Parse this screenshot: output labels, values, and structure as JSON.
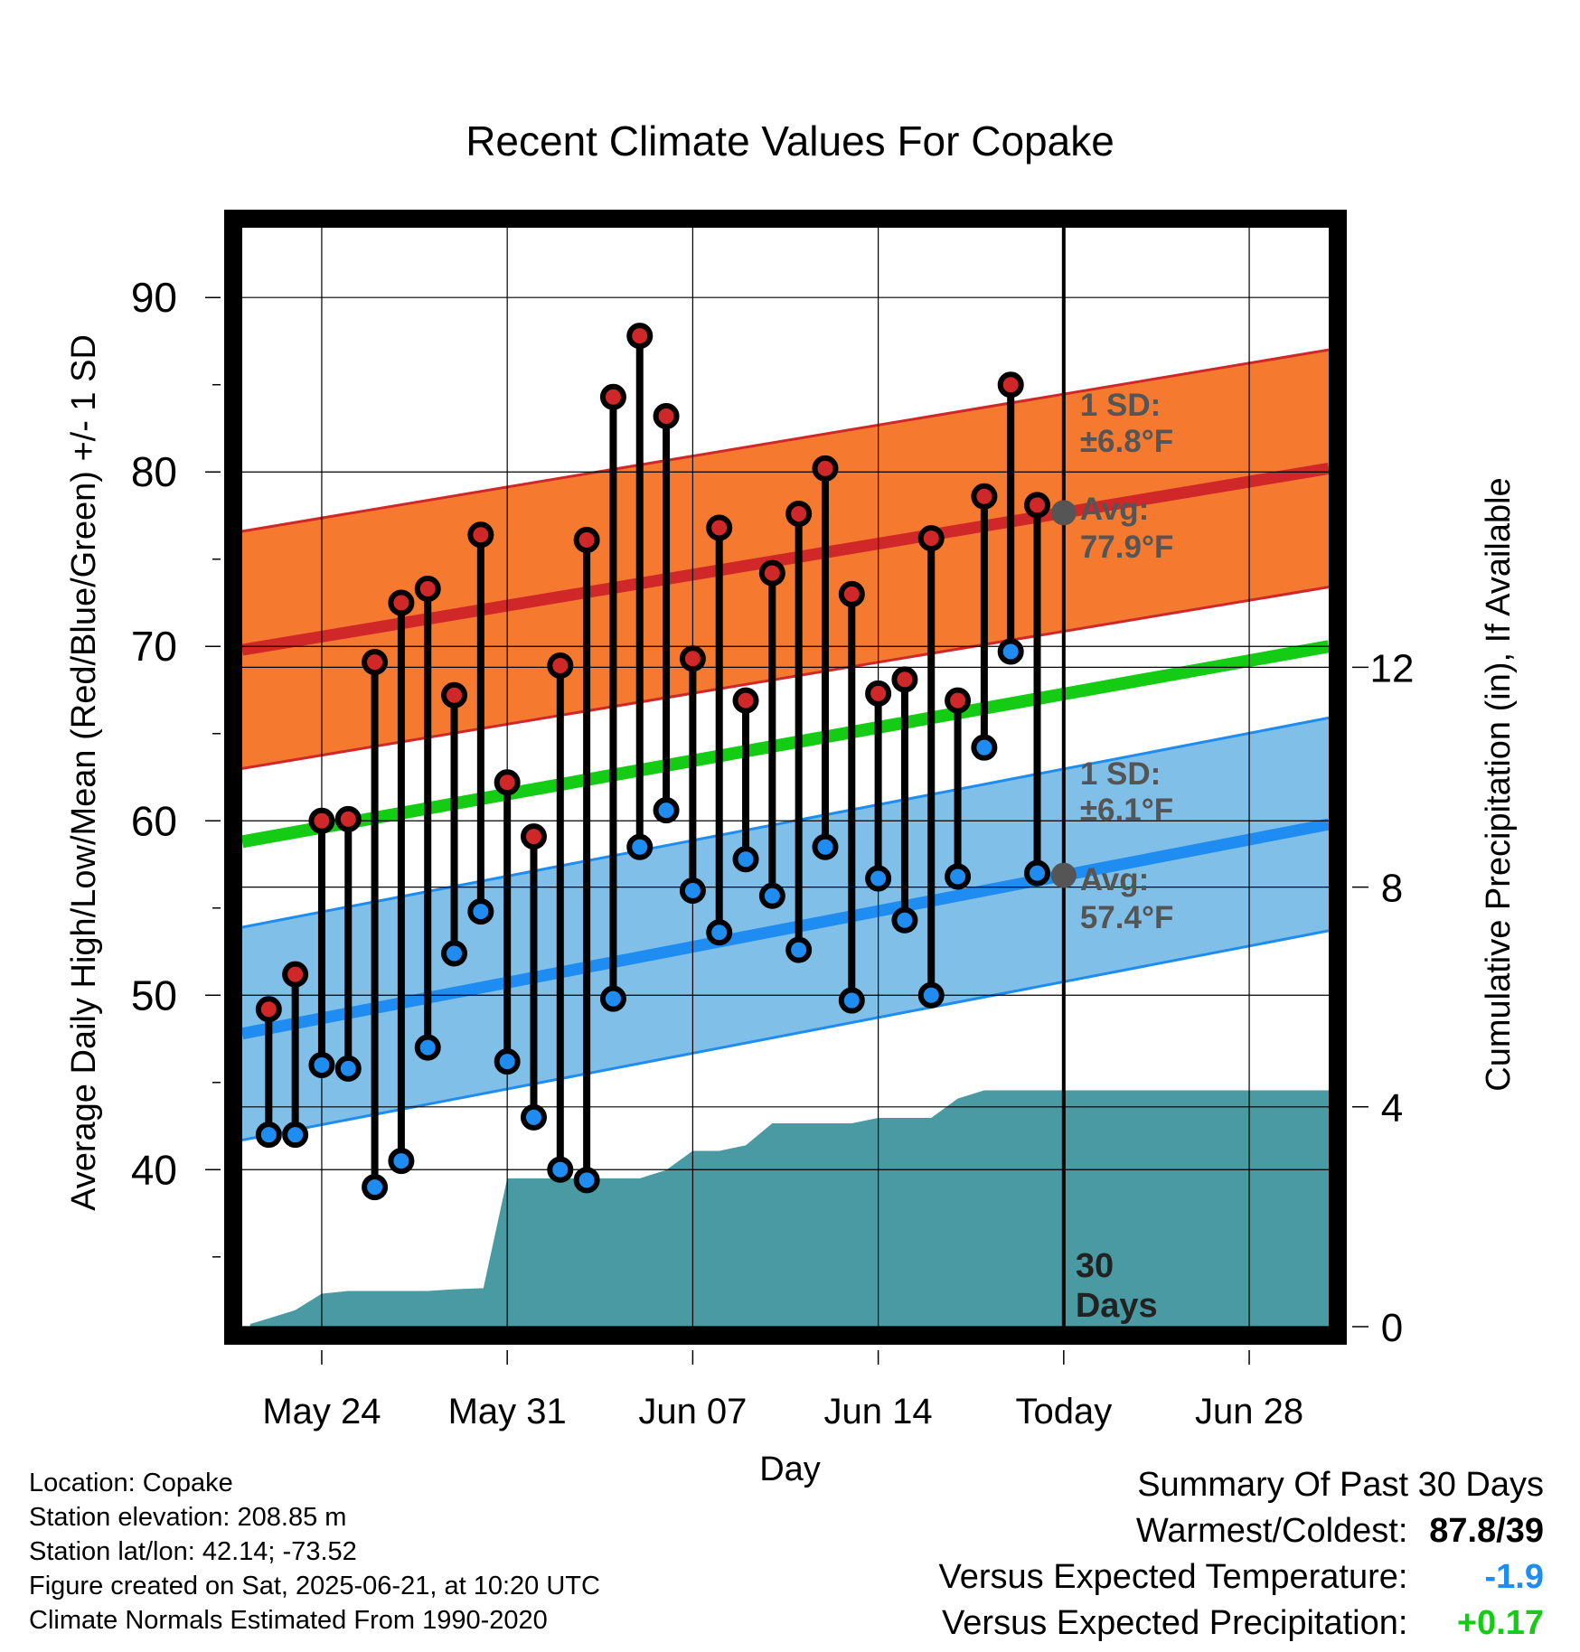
{
  "chart_data": {
    "type": "line",
    "title": "Recent Climate Values For Copake",
    "xlabel": "Day",
    "ylabel": "Average Daily High/Low/Mean (Red/Blue/Green) +/- 1 SD",
    "y2label": "Cumulative Precipitation (in), If Available",
    "ylim": [
      31,
      94
    ],
    "y2lim": [
      0,
      20
    ],
    "y_ticks": [
      "40",
      "50",
      "60",
      "70",
      "80",
      "90"
    ],
    "y2_ticks": [
      "0",
      "4",
      "8",
      "12"
    ],
    "x_ticks": [
      {
        "day": 3,
        "label": "May 24"
      },
      {
        "day": 10,
        "label": "May 31"
      },
      {
        "day": 17,
        "label": "Jun 07"
      },
      {
        "day": 24,
        "label": "Jun 14"
      },
      {
        "day": 31,
        "label": "Today"
      },
      {
        "day": 38,
        "label": "Jun 28"
      }
    ],
    "grid": true,
    "today_day": 31,
    "days_label": "30\nDays",
    "normals": {
      "days": [
        0,
        41
      ],
      "high_mean": [
        69.8,
        80.2
      ],
      "high_sd": 6.8,
      "low_mean": [
        47.8,
        59.8
      ],
      "low_sd": 6.1,
      "mean": [
        58.8,
        70.0
      ]
    },
    "daily": [
      {
        "day": 1,
        "high": 49.2,
        "low": 42.0
      },
      {
        "day": 2,
        "high": 51.2,
        "low": 42.0
      },
      {
        "day": 3,
        "high": 60.0,
        "low": 46.0
      },
      {
        "day": 4,
        "high": 60.1,
        "low": 45.8
      },
      {
        "day": 5,
        "high": 69.1,
        "low": 39.0
      },
      {
        "day": 6,
        "high": 72.5,
        "low": 40.5
      },
      {
        "day": 7,
        "high": 73.3,
        "low": 47.0
      },
      {
        "day": 8,
        "high": 67.2,
        "low": 52.4
      },
      {
        "day": 9,
        "high": 76.4,
        "low": 54.8
      },
      {
        "day": 10,
        "high": 62.2,
        "low": 46.2
      },
      {
        "day": 11,
        "high": 59.1,
        "low": 43.0
      },
      {
        "day": 12,
        "high": 68.9,
        "low": 40.0
      },
      {
        "day": 13,
        "high": 76.1,
        "low": 39.4
      },
      {
        "day": 14,
        "high": 84.3,
        "low": 49.8
      },
      {
        "day": 15,
        "high": 87.8,
        "low": 58.5
      },
      {
        "day": 16,
        "high": 83.2,
        "low": 60.6
      },
      {
        "day": 17,
        "high": 69.3,
        "low": 56.0
      },
      {
        "day": 18,
        "high": 76.8,
        "low": 53.6
      },
      {
        "day": 19,
        "high": 66.9,
        "low": 57.8
      },
      {
        "day": 20,
        "high": 74.2,
        "low": 55.7
      },
      {
        "day": 21,
        "high": 77.6,
        "low": 52.6
      },
      {
        "day": 22,
        "high": 80.2,
        "low": 58.5
      },
      {
        "day": 23,
        "high": 73.0,
        "low": 49.7
      },
      {
        "day": 24,
        "high": 67.3,
        "low": 56.7
      },
      {
        "day": 25,
        "high": 68.1,
        "low": 54.3
      },
      {
        "day": 26,
        "high": 76.2,
        "low": 50.0
      },
      {
        "day": 27,
        "high": 66.9,
        "low": 56.8
      },
      {
        "day": 28,
        "high": 78.6,
        "low": 64.2
      },
      {
        "day": 29,
        "high": 85.0,
        "low": 69.7
      },
      {
        "day": 30,
        "high": 78.1,
        "low": 57.0
      }
    ],
    "precip": {
      "days": [
        0.3,
        1,
        2,
        3,
        4,
        5,
        6,
        7,
        8,
        9,
        9.1,
        10,
        11,
        12,
        13,
        14,
        15,
        16,
        17,
        18,
        19,
        20,
        21,
        22,
        23,
        24,
        25,
        26,
        27,
        28,
        29,
        30,
        31,
        41
      ],
      "values": [
        0.05,
        0.15,
        0.3,
        0.6,
        0.65,
        0.65,
        0.65,
        0.65,
        0.68,
        0.7,
        0.7,
        2.7,
        2.7,
        2.7,
        2.7,
        2.7,
        2.7,
        2.85,
        3.2,
        3.2,
        3.3,
        3.7,
        3.7,
        3.7,
        3.7,
        3.8,
        3.8,
        3.8,
        4.15,
        4.3,
        4.3,
        4.3,
        4.3,
        4.3
      ]
    },
    "annotations": {
      "high_sd_label": "1 SD:",
      "high_sd_value": "±6.8°F",
      "high_avg_label": "Avg:",
      "high_avg_value": "77.9°F",
      "low_sd_label": "1 SD:",
      "low_sd_value": "±6.1°F",
      "low_avg_label": "Avg:",
      "low_avg_value": "57.4°F"
    },
    "colors": {
      "high_band": "#f57a30",
      "high_line": "#d02828",
      "low_band": "#80c0e8",
      "low_line": "#1e8cf0",
      "mean_line": "#14cc14",
      "precip_fill": "#4a9aa4",
      "high_dot": "#d02828",
      "low_dot": "#1e8cf0",
      "avg_dot": "#555555",
      "annotation_text": "#555555"
    }
  },
  "footer": {
    "location": "Location: Copake",
    "elevation": "Station elevation: 208.85 m",
    "latlon": "Station lat/lon: 42.14; -73.52",
    "created": "Figure created on Sat, 2025-06-21, at 10:20 UTC",
    "normals": "Climate Normals Estimated From 1990-2020"
  },
  "summary": {
    "title": "Summary Of Past 30 Days",
    "warmest_label": "Warmest/Coldest:",
    "warmest_value": "87.8/39",
    "temp_label": "Versus Expected Temperature:",
    "temp_value": "-1.9",
    "temp_color": "#1e8cf0",
    "precip_label": "Versus Expected Precipitation:",
    "precip_value": "+0.17",
    "precip_color": "#14cc14"
  }
}
